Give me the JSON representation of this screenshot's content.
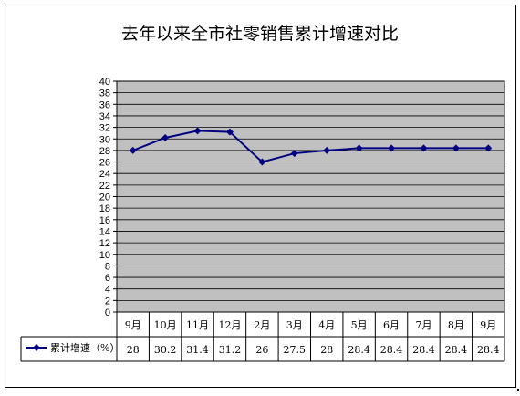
{
  "chart_data": {
    "type": "line",
    "title": "去年以来全市社零销售累计增速对比",
    "categories": [
      "9月",
      "10月",
      "11月",
      "12月",
      "2月",
      "3月",
      "4月",
      "5月",
      "6月",
      "7月",
      "8月",
      "9月"
    ],
    "series": [
      {
        "name": "累计增速（%）",
        "values": [
          28,
          30.2,
          31.4,
          31.2,
          26,
          27.5,
          28,
          28.4,
          28.4,
          28.4,
          28.4,
          28.4
        ],
        "table_labels": [
          "28",
          "30.2",
          "31.4",
          "31.2",
          "26",
          "27.5",
          "28",
          "28.4",
          "28.4",
          "28.4",
          "28.4",
          "28.4"
        ],
        "color": "#000080"
      }
    ],
    "ylim": [
      0,
      40
    ],
    "ytick_step": 2,
    "grid": true,
    "plot_background": "#c0c0c0",
    "legend": "data-table"
  }
}
